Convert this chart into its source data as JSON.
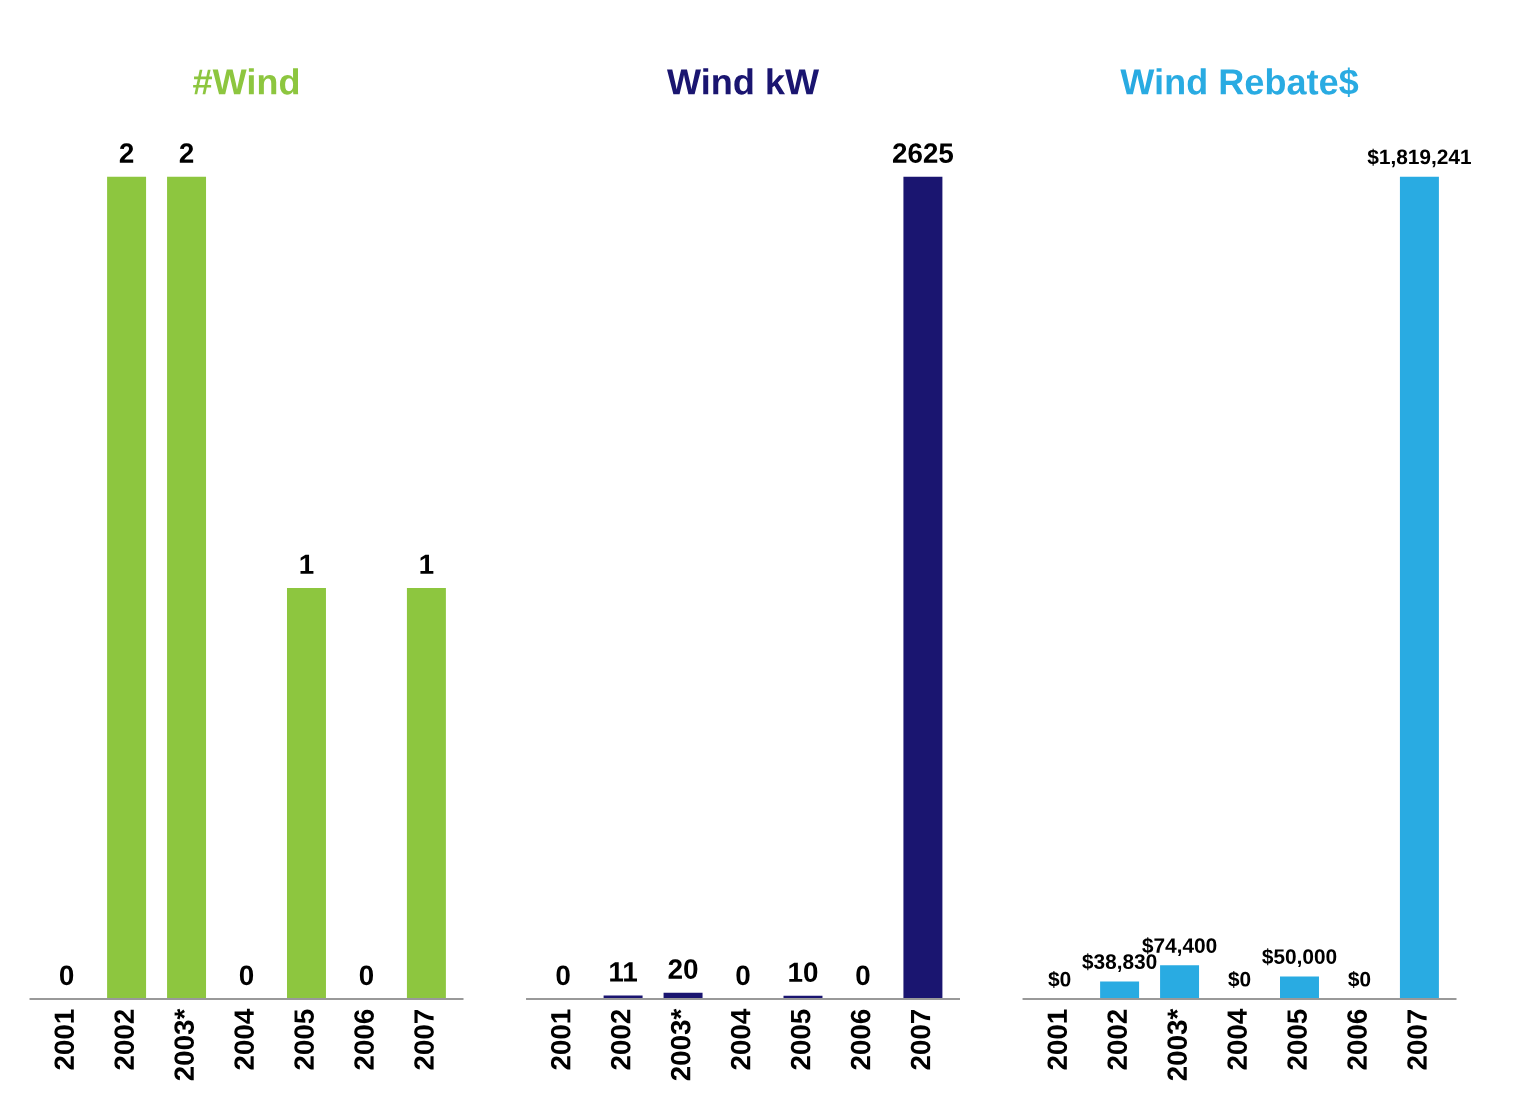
{
  "chart_data": [
    {
      "type": "bar",
      "title": "#Wind",
      "categories": [
        "2001",
        "2002",
        "2003*",
        "2004",
        "2005",
        "2006",
        "2007"
      ],
      "values": [
        0,
        2,
        2,
        0,
        1,
        0,
        1
      ],
      "color": "#8dc63f",
      "data_labels": true,
      "tick_labels": "x"
    },
    {
      "type": "bar",
      "title": "Wind kW",
      "categories": [
        "2001",
        "2002",
        "2003*",
        "2004",
        "2005",
        "2006",
        "2007"
      ],
      "values": [
        0,
        11,
        20,
        0,
        10,
        0,
        2625
      ],
      "color": "#1a1570",
      "data_labels": true,
      "tick_labels": "x"
    },
    {
      "type": "bar",
      "title": "Wind Rebate$",
      "categories": [
        "2001",
        "2002",
        "2003*",
        "2004",
        "2005",
        "2006",
        "2007"
      ],
      "values": [
        0,
        38830,
        74400,
        0,
        50000,
        0,
        1819241
      ],
      "color": "#29abe2",
      "value_labels": [
        "$0",
        "$38,830",
        "$74,400",
        "$0",
        "$50,000",
        "$0",
        "$1,819,241"
      ],
      "tick_labels": "x"
    }
  ]
}
